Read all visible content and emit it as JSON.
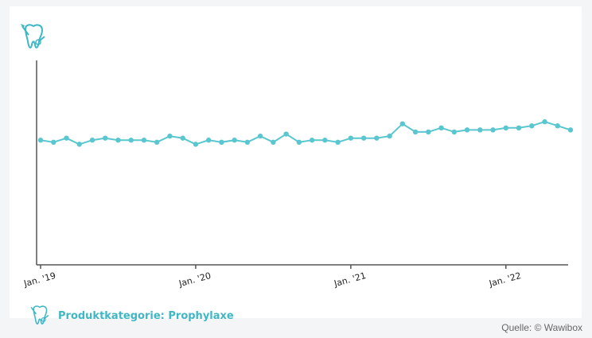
{
  "chart_data": {
    "type": "line",
    "title": "",
    "xlabel": "",
    "ylabel": "",
    "x_tick_labels": [
      "Jan. '19",
      "Jan. '20",
      "Jan. '21",
      "Jan. '22"
    ],
    "x_tick_index": [
      0,
      12,
      24,
      36
    ],
    "ylim": [
      0,
      100
    ],
    "grid": false,
    "series": [
      {
        "values": [
          61,
          60,
          62,
          59,
          61,
          62,
          61,
          61,
          61,
          60,
          63,
          62,
          59,
          61,
          60,
          61,
          60,
          63,
          60,
          64,
          60,
          61,
          61,
          60,
          62,
          62,
          62,
          63,
          69,
          65,
          65,
          67,
          65,
          66,
          66,
          66,
          67,
          67,
          68,
          70,
          68,
          66
        ]
      }
    ]
  },
  "category_label": "Produktkategorie: Prophylaxe",
  "source_label": "Quelle: © Wawibox",
  "colors": {
    "line": "#5ac6cf",
    "marker": "#5ac6cf",
    "axis": "#555555",
    "accent": "#3fb7c4"
  },
  "icons": {
    "top": "tooth-brush-icon",
    "bottom": "tooth-brush-icon"
  }
}
